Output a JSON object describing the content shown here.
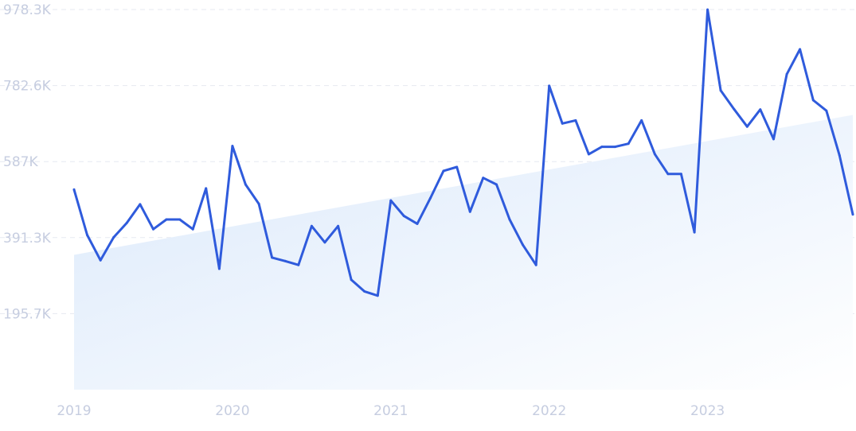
{
  "chart_data": {
    "type": "line",
    "title": "",
    "xlabel": "",
    "ylabel": "",
    "ylim": [
      0,
      978300
    ],
    "y_tick_labels": [
      "978.3K",
      "782.6K",
      "587K",
      "391.3K",
      "195.7K"
    ],
    "y_tick_values": [
      978300,
      782600,
      587000,
      391300,
      195700
    ],
    "x_tick_labels": [
      "2019",
      "2020",
      "2021",
      "2022",
      "2023"
    ],
    "x_tick_values": [
      2019.0,
      2020.0,
      2021.0,
      2022.0,
      2023.0
    ],
    "grid": true,
    "colors": {
      "line": "#2f5bdc",
      "trend_fill": "#dbe9fb",
      "tick_label": "#c6cde0",
      "grid": "#e6e9f1"
    },
    "trend": {
      "x": [
        2019.0,
        2023.917
      ],
      "y": [
        347000,
        707000
      ]
    },
    "series": [
      {
        "x": [
          2019.0,
          2019.083,
          2019.167,
          2019.25,
          2019.333,
          2019.417,
          2019.5,
          2019.583,
          2019.667,
          2019.75,
          2019.833,
          2019.917,
          2020.0,
          2020.083,
          2020.167,
          2020.25,
          2020.333,
          2020.417,
          2020.5,
          2020.583,
          2020.667,
          2020.75,
          2020.833,
          2020.917,
          2021.0,
          2021.083,
          2021.167,
          2021.25,
          2021.333,
          2021.417,
          2021.5,
          2021.583,
          2021.667,
          2021.75,
          2021.833,
          2021.917,
          2022.0,
          2022.083,
          2022.167,
          2022.25,
          2022.333,
          2022.417,
          2022.5,
          2022.583,
          2022.667,
          2022.75,
          2022.833,
          2022.917,
          2023.0,
          2023.083,
          2023.167,
          2023.25,
          2023.333,
          2023.417,
          2023.5,
          2023.583,
          2023.667,
          2023.75,
          2023.833,
          2023.917
        ],
        "y": [
          515000,
          398000,
          333000,
          392000,
          429000,
          477000,
          413000,
          438000,
          438000,
          413000,
          518000,
          311000,
          627000,
          528000,
          478000,
          340000,
          331000,
          321000,
          421000,
          379000,
          421000,
          283000,
          253000,
          242000,
          487000,
          447000,
          427000,
          493000,
          563000,
          573000,
          458000,
          545000,
          528000,
          438000,
          373000,
          321000,
          782000,
          685000,
          693000,
          606000,
          625000,
          625000,
          633000,
          693000,
          606000,
          555000,
          555000,
          405000,
          978000,
          770000,
          722000,
          677000,
          721000,
          645000,
          812000,
          876000,
          745000,
          718000,
          603000,
          451000
        ]
      }
    ]
  }
}
